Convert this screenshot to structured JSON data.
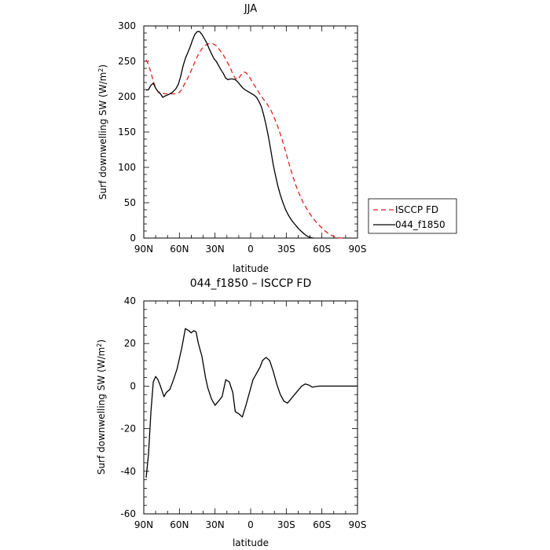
{
  "chart_data": [
    {
      "type": "line",
      "title": "JJA",
      "xlabel": "latitude",
      "ylabel": "Surf downwelling SW (W/m",
      "ylabel_sup": "2",
      "ylabel_close": ")",
      "x_direction": "90N to 90S (north left, south right); x values in degrees latitude, positive = north",
      "xlim": [
        90,
        -90
      ],
      "ylim": [
        0,
        300
      ],
      "yticks": [
        0,
        50,
        100,
        150,
        200,
        250,
        300
      ],
      "xticks": [
        90,
        60,
        30,
        0,
        -30,
        -60,
        -90
      ],
      "xtick_labels": [
        "90N",
        "60N",
        "30N",
        "0",
        "30S",
        "60S",
        "90S"
      ],
      "legend_position": "right",
      "series": [
        {
          "name": "ISCCP FD",
          "color": "#e0201b",
          "style": "dashed",
          "points": [
            [
              88,
              252
            ],
            [
              86,
              245
            ],
            [
              84,
              234
            ],
            [
              82,
              222
            ],
            [
              80,
              212
            ],
            [
              78,
              207
            ],
            [
              75,
              205
            ],
            [
              72,
              204
            ],
            [
              69,
              204
            ],
            [
              66,
              204
            ],
            [
              63,
              204
            ],
            [
              60,
              206
            ],
            [
              58,
              210
            ],
            [
              56,
              217
            ],
            [
              53,
              226
            ],
            [
              50,
              237
            ],
            [
              47,
              249
            ],
            [
              44,
              260
            ],
            [
              41,
              268
            ],
            [
              38,
              273
            ],
            [
              35,
              275
            ],
            [
              32,
              275
            ],
            [
              29,
              272
            ],
            [
              26,
              266
            ],
            [
              23,
              259
            ],
            [
              20,
              250
            ],
            [
              17,
              240
            ],
            [
              15,
              232
            ],
            [
              13,
              226
            ],
            [
              11,
              224
            ],
            [
              10,
              226
            ],
            [
              8,
              231
            ],
            [
              6,
              235
            ],
            [
              4,
              234
            ],
            [
              2,
              230
            ],
            [
              0,
              225
            ],
            [
              -2,
              219
            ],
            [
              -5,
              211
            ],
            [
              -8,
              203
            ],
            [
              -11,
              196
            ],
            [
              -14,
              189
            ],
            [
              -17,
              181
            ],
            [
              -20,
              170
            ],
            [
              -23,
              157
            ],
            [
              -26,
              142
            ],
            [
              -29,
              125
            ],
            [
              -32,
              107
            ],
            [
              -35,
              90
            ],
            [
              -38,
              75
            ],
            [
              -41,
              62
            ],
            [
              -44,
              51
            ],
            [
              -47,
              42
            ],
            [
              -50,
              34
            ],
            [
              -53,
              27
            ],
            [
              -56,
              21
            ],
            [
              -59,
              16
            ],
            [
              -62,
              11
            ],
            [
              -65,
              7
            ],
            [
              -68,
              4
            ],
            [
              -71,
              1.5
            ],
            [
              -74,
              0.3
            ],
            [
              -77,
              0
            ]
          ]
        },
        {
          "name": "044_f1850",
          "color": "#000000",
          "style": "solid",
          "points": [
            [
              88,
              209
            ],
            [
              86,
              210
            ],
            [
              84,
              216
            ],
            [
              82,
              219
            ],
            [
              80,
              212
            ],
            [
              78,
              207
            ],
            [
              76,
              204
            ],
            [
              74,
              199
            ],
            [
              72,
              201
            ],
            [
              69,
              203
            ],
            [
              66,
              206
            ],
            [
              63,
              211
            ],
            [
              61,
              217
            ],
            [
              59,
              228
            ],
            [
              57,
              243
            ],
            [
              55,
              254
            ],
            [
              53,
              262
            ],
            [
              51,
              270
            ],
            [
              49,
              280
            ],
            [
              47,
              288
            ],
            [
              45,
              292
            ],
            [
              43,
              292
            ],
            [
              41,
              288
            ],
            [
              39,
              282
            ],
            [
              37,
              276
            ],
            [
              35,
              268
            ],
            [
              33,
              261
            ],
            [
              31,
              254
            ],
            [
              29,
              250
            ],
            [
              27,
              244
            ],
            [
              25,
              238
            ],
            [
              23,
              233
            ],
            [
              21,
              226
            ],
            [
              19,
              224
            ],
            [
              17,
              225
            ],
            [
              15,
              225
            ],
            [
              13,
              224
            ],
            [
              11,
              221
            ],
            [
              9,
              217
            ],
            [
              7,
              213
            ],
            [
              5,
              210
            ],
            [
              3,
              208
            ],
            [
              1,
              206
            ],
            [
              -1,
              204
            ],
            [
              -3,
              202
            ],
            [
              -5,
              199
            ],
            [
              -7,
              193
            ],
            [
              -9,
              186
            ],
            [
              -11,
              174
            ],
            [
              -13,
              160
            ],
            [
              -15,
              143
            ],
            [
              -17,
              124
            ],
            [
              -19,
              104
            ],
            [
              -21,
              88
            ],
            [
              -23,
              73
            ],
            [
              -25,
              61
            ],
            [
              -27,
              51
            ],
            [
              -29,
              42
            ],
            [
              -31,
              35
            ],
            [
              -33,
              29
            ],
            [
              -35,
              24
            ],
            [
              -37,
              20
            ],
            [
              -39,
              16
            ],
            [
              -41,
              12
            ],
            [
              -43,
              9
            ],
            [
              -45,
              6
            ],
            [
              -47,
              3.5
            ],
            [
              -49,
              1.5
            ],
            [
              -51,
              0.5
            ],
            [
              -53,
              0
            ]
          ]
        }
      ]
    },
    {
      "type": "line",
      "title": "044_f1850 – ISCCP FD",
      "xlabel": "latitude",
      "ylabel": "Surf downwelling SW (W/m",
      "ylabel_sup": "2",
      "ylabel_close": ")",
      "xlim": [
        90,
        -90
      ],
      "ylim": [
        -60,
        40
      ],
      "yticks": [
        -60,
        -40,
        -20,
        0,
        20,
        40
      ],
      "xticks": [
        90,
        60,
        30,
        0,
        -30,
        -60,
        -90
      ],
      "xtick_labels": [
        "90N",
        "60N",
        "30N",
        "0",
        "30S",
        "60S",
        "90S"
      ],
      "series": [
        {
          "color": "#000000",
          "style": "solid",
          "points": [
            [
              88,
              -43
            ],
            [
              86,
              -32
            ],
            [
              84,
              -12
            ],
            [
              82,
              2
            ],
            [
              80,
              4.5
            ],
            [
              78,
              3
            ],
            [
              76,
              0
            ],
            [
              73,
              -5
            ],
            [
              71,
              -3
            ],
            [
              68,
              -1.5
            ],
            [
              65,
              3
            ],
            [
              62,
              8
            ],
            [
              58,
              18
            ],
            [
              55,
              27
            ],
            [
              52,
              26
            ],
            [
              50,
              25
            ],
            [
              48,
              26
            ],
            [
              46,
              25.5
            ],
            [
              44,
              20
            ],
            [
              41,
              14
            ],
            [
              38,
              4
            ],
            [
              36,
              -1
            ],
            [
              33,
              -6
            ],
            [
              30,
              -9
            ],
            [
              27,
              -7
            ],
            [
              24,
              -5
            ],
            [
              21,
              3
            ],
            [
              18,
              2
            ],
            [
              15,
              -3
            ],
            [
              13,
              -12
            ],
            [
              10,
              -13
            ],
            [
              7,
              -14.5
            ],
            [
              4,
              -9
            ],
            [
              1,
              -3
            ],
            [
              -2,
              3
            ],
            [
              -5,
              6
            ],
            [
              -8,
              9
            ],
            [
              -10,
              12
            ],
            [
              -13,
              13.5
            ],
            [
              -16,
              12
            ],
            [
              -19,
              7
            ],
            [
              -22,
              1
            ],
            [
              -25,
              -4
            ],
            [
              -28,
              -7
            ],
            [
              -31,
              -8
            ],
            [
              -34,
              -6
            ],
            [
              -37,
              -4
            ],
            [
              -40,
              -2
            ],
            [
              -43,
              0
            ],
            [
              -46,
              1
            ],
            [
              -49,
              0.5
            ],
            [
              -52,
              -0.5
            ],
            [
              -55,
              -0.2
            ],
            [
              -58,
              0
            ],
            [
              -62,
              0
            ],
            [
              -66,
              0
            ],
            [
              -70,
              0
            ],
            [
              -74,
              0
            ],
            [
              -78,
              0
            ],
            [
              -82,
              0
            ],
            [
              -86,
              0
            ],
            [
              -90,
              0
            ]
          ]
        }
      ]
    }
  ]
}
